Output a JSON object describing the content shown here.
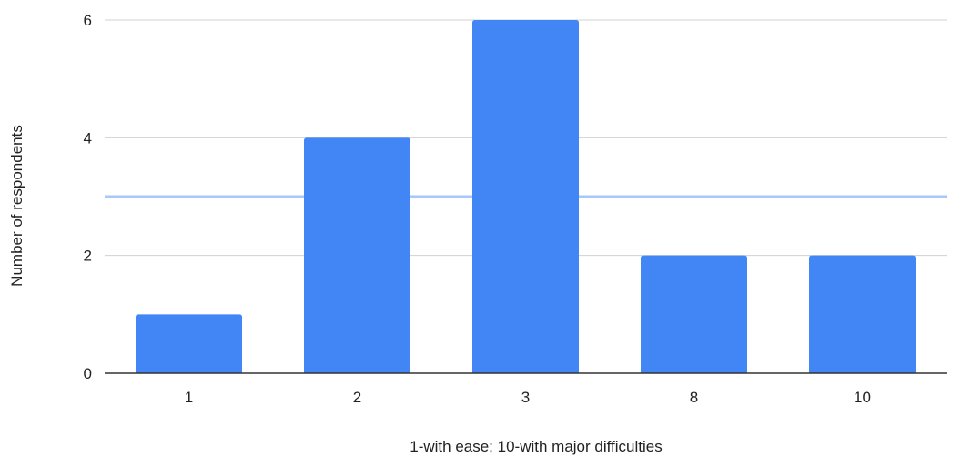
{
  "chart_data": {
    "type": "bar",
    "title": "",
    "xlabel": "1-with ease; 10-with major difficulties",
    "ylabel": "Number of respondents",
    "categories": [
      "1",
      "2",
      "3",
      "8",
      "10"
    ],
    "values": [
      1,
      4,
      6,
      2,
      2
    ],
    "ylim": [
      0,
      6
    ],
    "yticks": [
      0,
      2,
      4,
      6
    ],
    "reference_line": 3,
    "grid": true,
    "legend": "none",
    "colors": {
      "bar": "#4285f4",
      "reference_line": "#a8c7fa",
      "grid": "#d0d0d0",
      "axis": "#333333"
    }
  }
}
